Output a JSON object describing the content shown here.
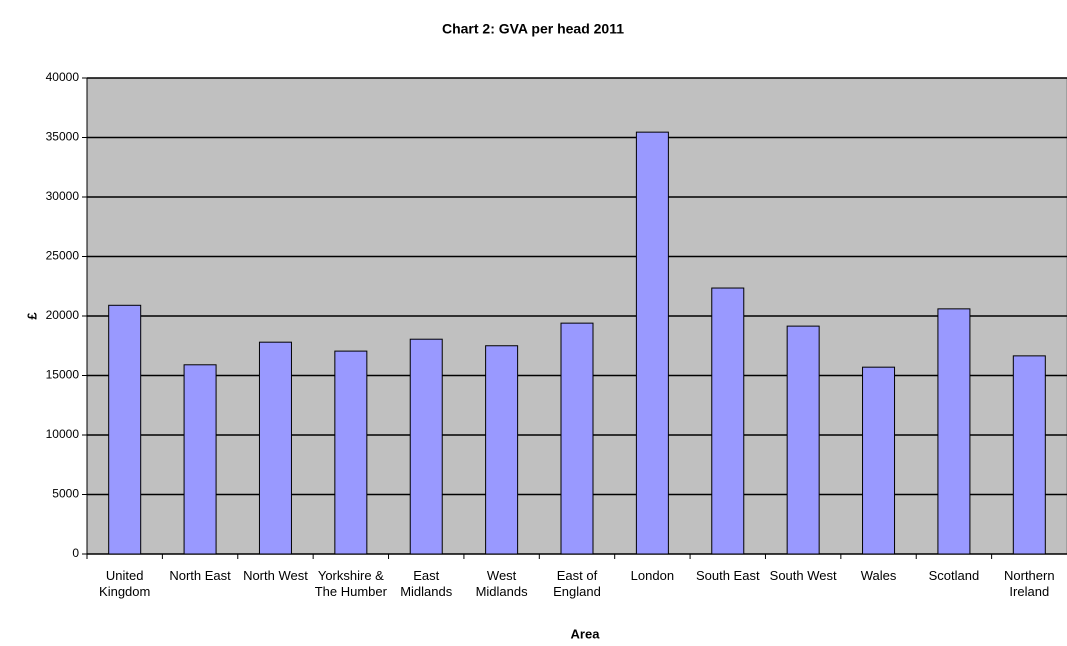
{
  "chart_data": {
    "type": "bar",
    "title": "Chart 2: GVA per head 2011",
    "x_label": "Area",
    "y_label": "£",
    "categories": [
      "United Kingdom",
      "North East",
      "North West",
      "Yorkshire & The Humber",
      "East Midlands",
      "West Midlands",
      "East of England",
      "London",
      "South East",
      "South West",
      "Wales",
      "Scotland",
      "Northern Ireland"
    ],
    "values": [
      20900,
      15900,
      17800,
      17050,
      18050,
      17500,
      19400,
      35450,
      22350,
      19150,
      15700,
      20600,
      16650
    ],
    "color": "#9999ff",
    "ylim": [
      0,
      40000
    ],
    "yticks": [
      0,
      5000,
      10000,
      15000,
      20000,
      25000,
      30000,
      35000,
      40000
    ],
    "grid": true
  }
}
